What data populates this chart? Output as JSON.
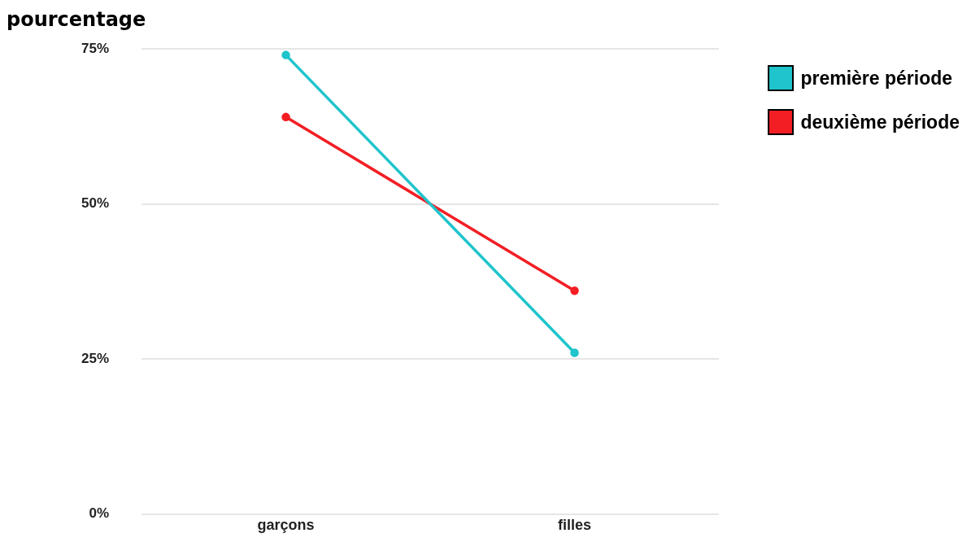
{
  "chart_data": {
    "type": "line",
    "ylabel": "pourcentage",
    "categories": [
      "garçons",
      "filles"
    ],
    "series": [
      {
        "name": "première période",
        "color": "#1fc4cc",
        "values": [
          74,
          26
        ]
      },
      {
        "name": "deuxième période",
        "color": "#f21e24",
        "values": [
          64,
          36
        ]
      }
    ],
    "ylim": [
      0,
      75
    ],
    "yticks": [
      {
        "value": 0,
        "label": "0%"
      },
      {
        "value": 25,
        "label": "25%"
      },
      {
        "value": 50,
        "label": "50%"
      },
      {
        "value": 75,
        "label": "75%"
      }
    ],
    "grid": "y",
    "legend": "top right",
    "marker": "circle",
    "line_style": "solid"
  }
}
